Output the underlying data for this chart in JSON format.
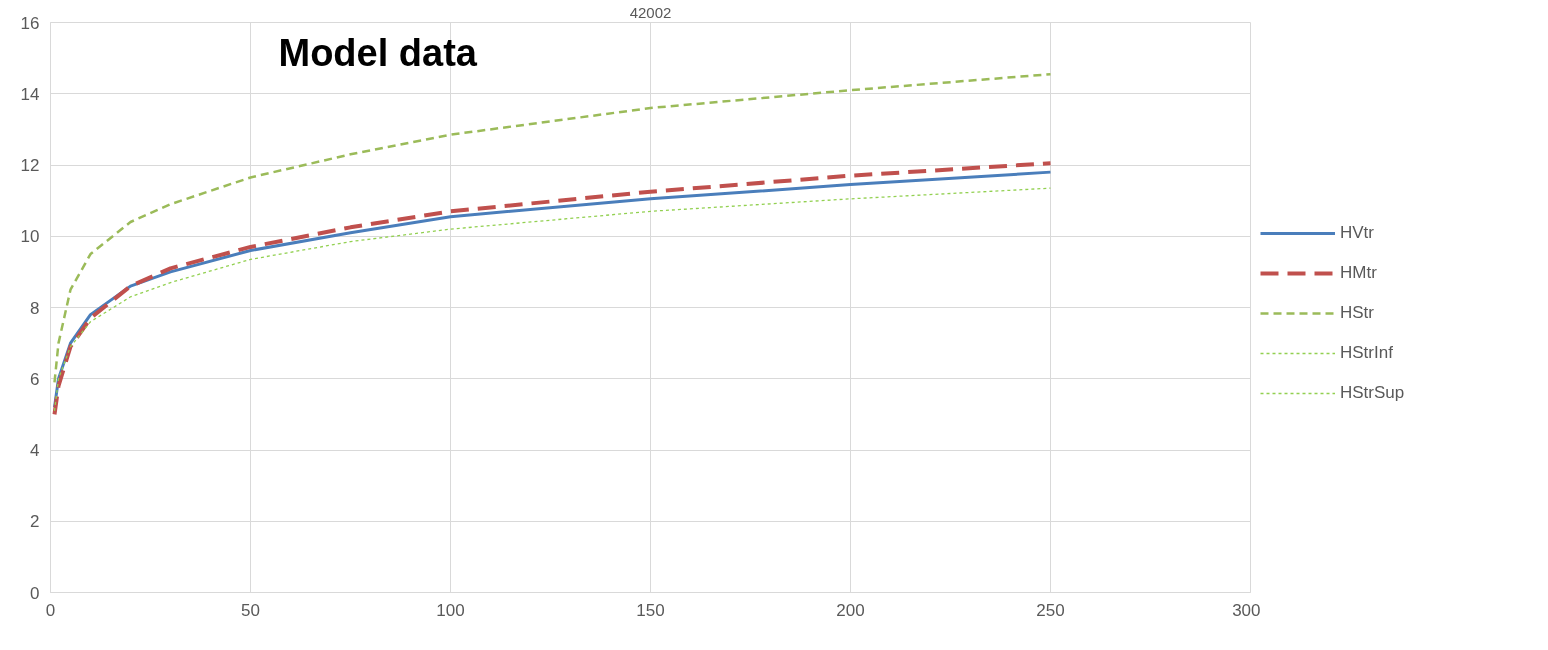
{
  "chart_data": {
    "type": "line",
    "title": "42002",
    "annotations": [
      "Model data"
    ],
    "x": [
      1,
      2,
      5,
      10,
      20,
      30,
      50,
      75,
      100,
      150,
      200,
      250
    ],
    "series": [
      {
        "name": "HVtr",
        "color": "#4a7ebb",
        "line_style": "solid",
        "values": [
          5.2,
          6.0,
          7.0,
          7.8,
          8.6,
          9.0,
          9.6,
          10.1,
          10.55,
          11.05,
          11.45,
          11.8
        ]
      },
      {
        "name": "HMtr",
        "color": "#c0504d",
        "line_style": "dashed",
        "values": [
          5.0,
          5.8,
          6.9,
          7.7,
          8.6,
          9.1,
          9.7,
          10.25,
          10.7,
          11.25,
          11.7,
          12.05
        ]
      },
      {
        "name": "HStr",
        "color": "#9bbb59",
        "line_style": "dashed",
        "values": [
          5.9,
          7.0,
          8.5,
          9.5,
          10.4,
          10.9,
          11.65,
          12.3,
          12.85,
          13.6,
          14.1,
          14.55
        ]
      },
      {
        "name": "HStrInf",
        "color": "#92d050",
        "line_style": "dotted",
        "values": [
          5.1,
          6.0,
          6.9,
          7.6,
          8.3,
          8.7,
          9.35,
          9.85,
          10.2,
          10.7,
          11.05,
          11.35
        ]
      },
      {
        "name": "HStrSup",
        "color": "#92d050",
        "line_style": "dotted",
        "values": [
          null,
          null,
          null,
          null,
          null,
          null,
          null,
          null,
          null,
          null,
          null,
          null
        ]
      }
    ],
    "xlim": [
      0,
      300
    ],
    "ylim": [
      0,
      16
    ],
    "xticks": [
      0,
      50,
      100,
      150,
      200,
      250,
      300
    ],
    "yticks": [
      0,
      2,
      4,
      6,
      8,
      10,
      12,
      14,
      16
    ],
    "grid": true,
    "legend": "right",
    "marker": "none"
  }
}
